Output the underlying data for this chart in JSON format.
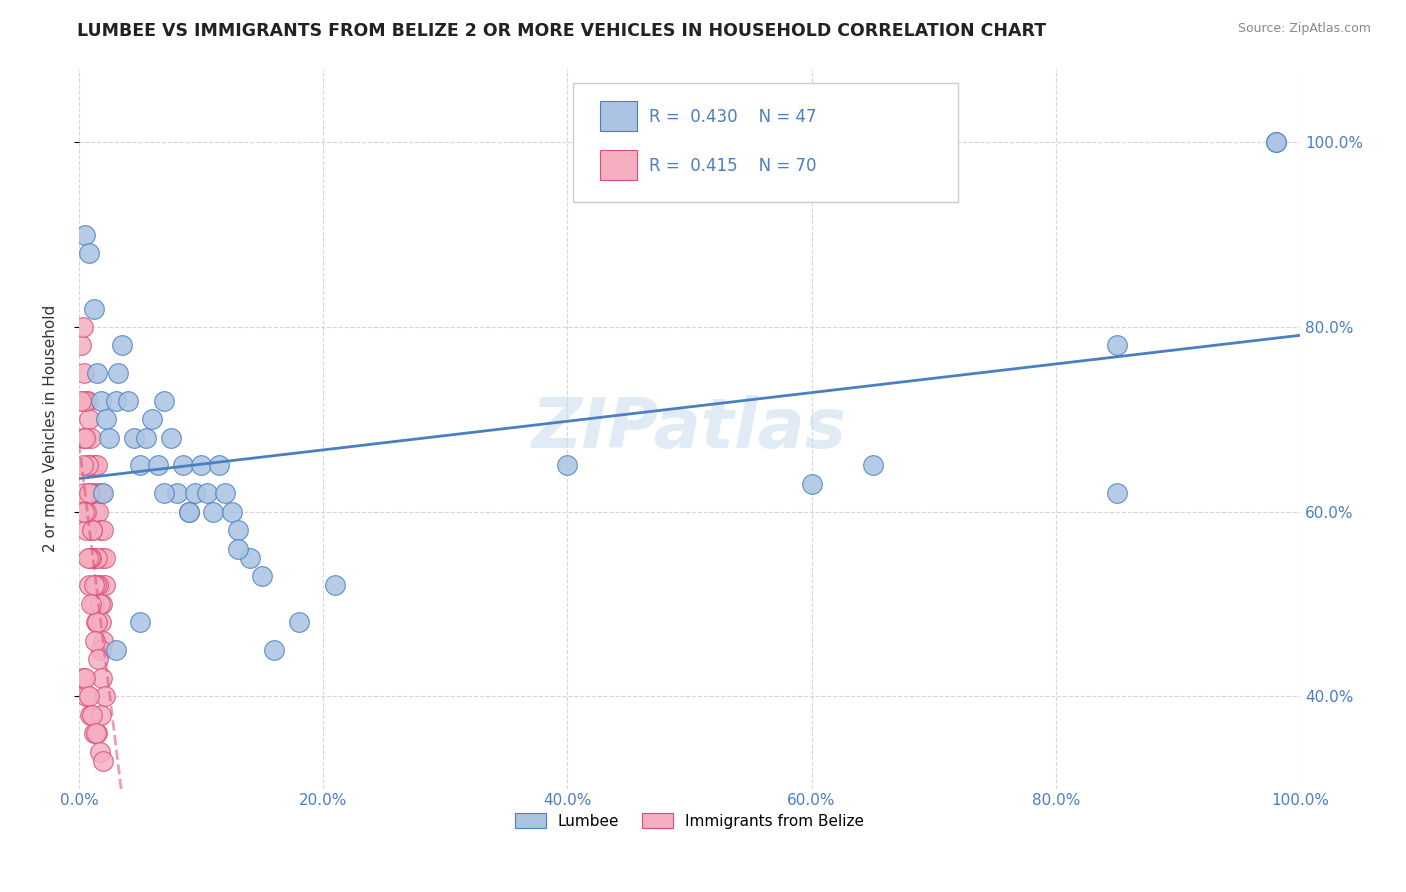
{
  "title": "LUMBEE VS IMMIGRANTS FROM BELIZE 2 OR MORE VEHICLES IN HOUSEHOLD CORRELATION CHART",
  "source": "Source: ZipAtlas.com",
  "ylabel": "2 or more Vehicles in Household",
  "xmin": 0.0,
  "xmax": 1.0,
  "ymin": 0.3,
  "ymax": 1.08,
  "xtick_labels": [
    "0.0%",
    "20.0%",
    "40.0%",
    "60.0%",
    "80.0%",
    "100.0%"
  ],
  "xtick_vals": [
    0.0,
    0.2,
    0.4,
    0.6,
    0.8,
    1.0
  ],
  "ytick_labels": [
    "40.0%",
    "60.0%",
    "80.0%",
    "100.0%"
  ],
  "ytick_vals": [
    0.4,
    0.6,
    0.8,
    1.0
  ],
  "lumbee_R": 0.43,
  "lumbee_N": 47,
  "belize_R": 0.415,
  "belize_N": 70,
  "lumbee_color": "#aac4e2",
  "lumbee_line_color": "#4a7fc1",
  "belize_color": "#f5afc0",
  "belize_line_color": "#d94f7a",
  "lumbee_x": [
    0.005,
    0.008,
    0.012,
    0.015,
    0.018,
    0.022,
    0.025,
    0.03,
    0.032,
    0.035,
    0.04,
    0.045,
    0.05,
    0.055,
    0.06,
    0.065,
    0.07,
    0.075,
    0.08,
    0.085,
    0.09,
    0.095,
    0.1,
    0.105,
    0.11,
    0.115,
    0.12,
    0.125,
    0.13,
    0.14,
    0.15,
    0.16,
    0.18,
    0.21,
    0.13,
    0.09,
    0.07,
    0.05,
    0.03,
    0.02,
    0.4,
    0.6,
    0.65,
    0.85,
    0.85,
    0.98,
    0.98
  ],
  "lumbee_y": [
    0.9,
    0.88,
    0.82,
    0.75,
    0.72,
    0.7,
    0.68,
    0.72,
    0.75,
    0.78,
    0.72,
    0.68,
    0.65,
    0.68,
    0.7,
    0.65,
    0.72,
    0.68,
    0.62,
    0.65,
    0.6,
    0.62,
    0.65,
    0.62,
    0.6,
    0.65,
    0.62,
    0.6,
    0.58,
    0.55,
    0.53,
    0.45,
    0.48,
    0.52,
    0.56,
    0.6,
    0.62,
    0.48,
    0.45,
    0.62,
    0.65,
    0.63,
    0.65,
    0.78,
    0.62,
    1.0,
    1.0
  ],
  "belize_x": [
    0.002,
    0.003,
    0.004,
    0.005,
    0.006,
    0.007,
    0.008,
    0.009,
    0.01,
    0.011,
    0.012,
    0.013,
    0.014,
    0.015,
    0.016,
    0.017,
    0.018,
    0.019,
    0.02,
    0.021,
    0.003,
    0.005,
    0.007,
    0.009,
    0.011,
    0.013,
    0.015,
    0.017,
    0.019,
    0.021,
    0.004,
    0.006,
    0.008,
    0.01,
    0.012,
    0.014,
    0.016,
    0.018,
    0.02,
    0.002,
    0.005,
    0.008,
    0.011,
    0.014,
    0.017,
    0.003,
    0.006,
    0.009,
    0.012,
    0.015,
    0.018,
    0.004,
    0.007,
    0.01,
    0.013,
    0.016,
    0.019,
    0.003,
    0.006,
    0.009,
    0.012,
    0.015,
    0.018,
    0.021,
    0.005,
    0.008,
    0.011,
    0.014,
    0.017,
    0.02
  ],
  "belize_y": [
    0.78,
    0.8,
    0.75,
    0.72,
    0.68,
    0.72,
    0.7,
    0.65,
    0.68,
    0.62,
    0.65,
    0.6,
    0.62,
    0.65,
    0.6,
    0.58,
    0.62,
    0.55,
    0.58,
    0.55,
    0.68,
    0.72,
    0.65,
    0.62,
    0.58,
    0.55,
    0.55,
    0.52,
    0.5,
    0.52,
    0.62,
    0.58,
    0.52,
    0.55,
    0.5,
    0.48,
    0.52,
    0.48,
    0.46,
    0.72,
    0.68,
    0.62,
    0.58,
    0.52,
    0.5,
    0.65,
    0.6,
    0.55,
    0.52,
    0.48,
    0.45,
    0.6,
    0.55,
    0.5,
    0.46,
    0.44,
    0.42,
    0.42,
    0.4,
    0.38,
    0.36,
    0.36,
    0.38,
    0.4,
    0.42,
    0.4,
    0.38,
    0.36,
    0.34,
    0.33
  ]
}
